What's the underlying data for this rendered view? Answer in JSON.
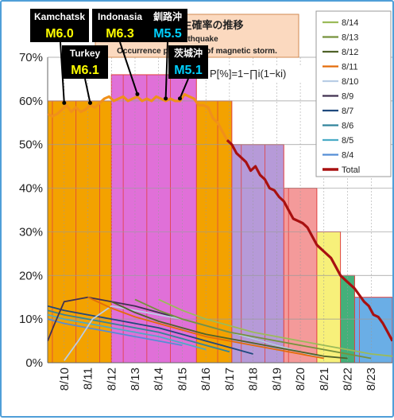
{
  "chart_data": {
    "type": "line",
    "title_lines": [
      "地震発生確率の推移",
      "earthquake",
      "Occurrence probability of magnetic storm."
    ],
    "formula": "P[%]=1−∏i(1−ki)",
    "y_ticks": [
      "0%",
      "10%",
      "20%",
      "30%",
      "40%",
      "50%",
      "60%",
      "70%"
    ],
    "ylim": [
      0,
      70
    ],
    "xlim": [
      9.3,
      23.9
    ],
    "x_ticks": [
      "8/10",
      "8/11",
      "8/12",
      "8/13",
      "8/14",
      "8/15",
      "8/16",
      "8/17",
      "8/18",
      "8/19",
      "8/20",
      "8/21",
      "8/22",
      "8/23"
    ],
    "grid": true,
    "legend_position": "top-right",
    "legend": [
      "8/14",
      "8/13",
      "8/12",
      "8/11",
      "8/10",
      "8/9",
      "8/7",
      "8/6",
      "8/5",
      "8/4",
      "Total"
    ],
    "colors": {
      "total": "#a81010",
      "orange_line": "#f0901a",
      "bands": [
        "#f3a200",
        "#e070d8",
        "#b69ad8",
        "#f49a9a",
        "#f7f07a",
        "#44b07a",
        "#6aaee6"
      ]
    },
    "bands": [
      {
        "y": [
          0,
          15
        ],
        "x": [
          9.3,
          23.9
        ],
        "color": "#6aaee6"
      },
      {
        "y": [
          0,
          20
        ],
        "x": [
          9.3,
          22.3
        ],
        "color": "#44b07a"
      },
      {
        "y": [
          0,
          30
        ],
        "x": [
          9.3,
          21.7
        ],
        "color": "#f7f07a"
      },
      {
        "y": [
          0,
          40
        ],
        "x": [
          9.3,
          20.7
        ],
        "color": "#f49a9a"
      },
      {
        "y": [
          0,
          50
        ],
        "x": [
          9.3,
          19.3
        ],
        "color": "#b69ad8"
      },
      {
        "y": [
          0,
          60
        ],
        "x": [
          9.3,
          17.1
        ],
        "color": "#f3a200"
      },
      {
        "y": [
          0,
          66
        ],
        "x": [
          12.0,
          15.6
        ],
        "color": "#e070d8"
      }
    ],
    "series": [
      {
        "name": "Total",
        "color": "#a81010",
        "x": [
          16.9,
          17.1,
          17.3,
          17.5,
          17.7,
          17.9,
          18.1,
          18.3,
          18.5,
          18.7,
          18.9,
          19.1,
          19.3,
          19.5,
          19.7,
          19.9,
          20.1,
          20.3,
          20.5,
          20.7,
          20.9,
          21.1,
          21.3,
          21.5,
          21.7,
          21.9,
          22.1,
          22.3,
          22.5,
          22.7,
          22.9,
          23.1,
          23.3,
          23.5,
          23.7,
          23.9
        ],
        "y": [
          51,
          50,
          48,
          47,
          46,
          44,
          45,
          43,
          42,
          40,
          39.5,
          38,
          37,
          35,
          33,
          32.5,
          32,
          31,
          29,
          27,
          26,
          25,
          24,
          22,
          20,
          19,
          18,
          17,
          15.5,
          14,
          13,
          11,
          10.5,
          9,
          7,
          5
        ]
      },
      {
        "name": "orange",
        "color": "#f0901a",
        "x": [
          9.3,
          9.5,
          9.7,
          9.9,
          10.1,
          10.3,
          10.5,
          10.7,
          10.9,
          11.1,
          11.3,
          11.5,
          11.7,
          11.9,
          12.1,
          12.3,
          12.5,
          12.7,
          12.9,
          13.1,
          13.3,
          13.5,
          13.7,
          13.9,
          14.1,
          14.3,
          14.5,
          14.7,
          14.9,
          15.1,
          15.3,
          15.5,
          15.7,
          15.9,
          16.1,
          16.3,
          16.5,
          16.7,
          16.9
        ],
        "y": [
          57,
          56.5,
          57,
          58,
          59,
          57.5,
          58.5,
          57.5,
          58,
          59,
          58.5,
          59.5,
          60.5,
          61,
          60,
          60.5,
          61,
          60,
          60.5,
          61,
          60,
          60.5,
          60,
          61,
          60.5,
          60,
          60.5,
          60,
          60,
          61.5,
          61,
          60.5,
          59,
          59,
          58.5,
          56,
          55,
          53,
          51
        ]
      },
      {
        "name": "8/14",
        "color": "#9bbb59",
        "x": [
          14.0,
          15.0,
          16.0,
          17.0,
          18.0,
          19.0,
          20.0,
          21.0,
          22.0,
          23.0,
          23.9
        ],
        "y": [
          14.5,
          12,
          10,
          8.5,
          7,
          6,
          5,
          4,
          3,
          2,
          1.5
        ]
      },
      {
        "name": "8/13",
        "color": "#76923c",
        "x": [
          13.0,
          14.0,
          15.0,
          16.0,
          17.0,
          18.0,
          19.0,
          20.0,
          21.0,
          22.0,
          23.0
        ],
        "y": [
          14.5,
          12,
          10,
          8.5,
          7,
          6,
          5,
          4,
          3,
          2,
          1
        ]
      },
      {
        "name": "8/12",
        "color": "#4f6228",
        "x": [
          12.0,
          13.0,
          14.0,
          15.0,
          16.0,
          17.0,
          18.0,
          19.0,
          20.0,
          21.0,
          22.0
        ],
        "y": [
          14,
          11.5,
          9.5,
          8,
          6.5,
          5.5,
          4.5,
          3.5,
          2.5,
          1.5,
          1
        ]
      },
      {
        "name": "8/11",
        "color": "#e46c0a",
        "x": [
          11.0,
          12.0,
          13.0,
          14.0,
          15.0,
          16.0,
          17.0,
          18.0,
          19.0,
          20.0,
          21.0
        ],
        "y": [
          15,
          12.5,
          10.5,
          9,
          7.5,
          6,
          5,
          4,
          3,
          2,
          1
        ]
      },
      {
        "name": "8/10",
        "color": "#b9cde5",
        "x": [
          10.0,
          10.6,
          11.2,
          12.0,
          13.0,
          14.0,
          15.0,
          16.0,
          17.0,
          18.0,
          19.0,
          20.0,
          21.0
        ],
        "y": [
          0.5,
          5,
          10,
          13,
          12,
          11,
          10,
          8.5,
          7,
          5.5,
          4,
          2.5,
          1
        ]
      },
      {
        "name": "8/9",
        "color": "#403151",
        "x": [
          9.3,
          9.6,
          10.0,
          11.0,
          12.0,
          13.0,
          14.0,
          15.0,
          16.0,
          17.0,
          18.0,
          19.0,
          20.0
        ],
        "y": [
          5,
          9,
          14,
          15,
          14,
          13,
          11.5,
          10,
          8.5,
          7,
          5.5,
          4,
          2.5
        ]
      },
      {
        "name": "8/7",
        "color": "#1f497d",
        "x": [
          9.3,
          10.0,
          11.0,
          12.0,
          13.0,
          14.0,
          15.0,
          16.0,
          17.0,
          18.0
        ],
        "y": [
          13,
          12,
          11,
          10,
          9,
          8,
          6.5,
          5,
          3.5,
          2
        ]
      },
      {
        "name": "8/6",
        "color": "#31859c",
        "x": [
          9.3,
          10.0,
          11.0,
          12.0,
          13.0,
          14.0,
          15.0,
          16.0,
          17.0
        ],
        "y": [
          12,
          11,
          10,
          9,
          8,
          7,
          5.5,
          4,
          2.5
        ]
      },
      {
        "name": "8/5",
        "color": "#4bacc6",
        "x": [
          9.3,
          10.0,
          11.0,
          12.0,
          13.0,
          14.0,
          15.0,
          16.0
        ],
        "y": [
          11,
          10,
          9,
          8,
          7,
          6,
          4.5,
          3
        ]
      },
      {
        "name": "8/4",
        "color": "#558ed5",
        "x": [
          9.3,
          10.0,
          11.0,
          12.0,
          13.0,
          14.0,
          15.0
        ],
        "y": [
          10,
          9,
          8,
          7,
          6,
          5,
          4
        ]
      }
    ],
    "annotations": [
      {
        "place": "Kamchatsk",
        "mag": "M6.0",
        "x": 10.0,
        "y": 59
      },
      {
        "place": "Indonasia",
        "mag": "M6.3",
        "x": 13.1,
        "y": 61
      },
      {
        "place": "釧路沖",
        "mag": "M5.5",
        "x": 14.3,
        "y": 60
      },
      {
        "place": "Turkey",
        "mag": "M6.1",
        "x": 11.1,
        "y": 59
      },
      {
        "place": "茨城沖",
        "mag": "M5.1",
        "x": 14.9,
        "y": 60
      }
    ]
  }
}
